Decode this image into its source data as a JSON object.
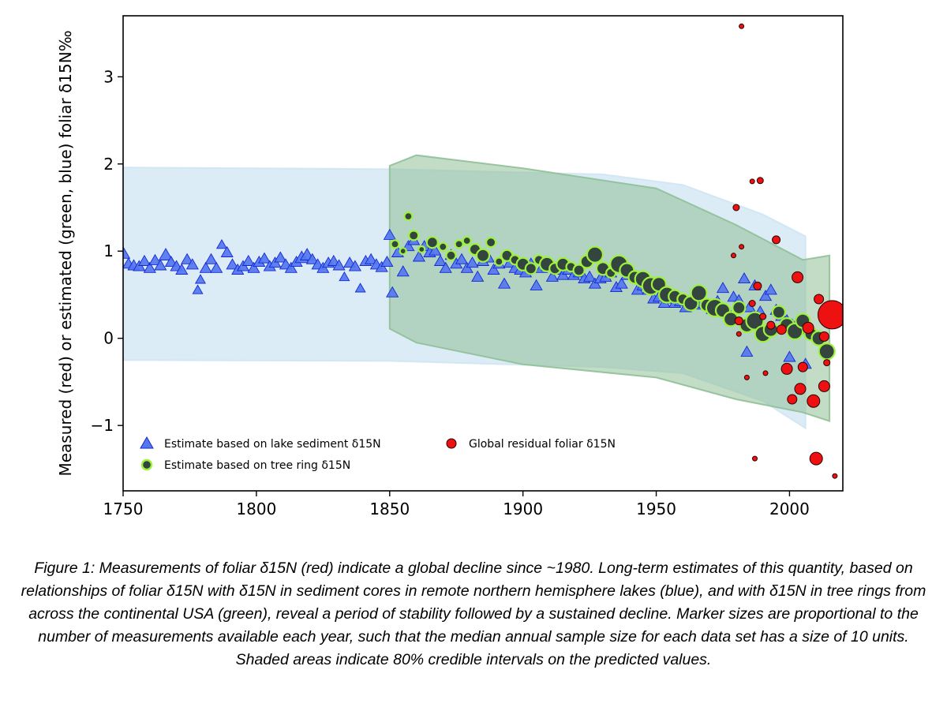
{
  "chart_data": {
    "type": "scatter",
    "ylabel": "Measured (red) or estimated (green, blue) foliar δ15N‰",
    "xlabel": "",
    "xlim": [
      1750,
      2020
    ],
    "ylim": [
      -1.75,
      3.7
    ],
    "x_ticks": [
      1750,
      1800,
      1850,
      1900,
      1950,
      2000
    ],
    "y_ticks": [
      -1,
      0,
      1,
      2,
      3
    ],
    "y_tick_labels": [
      "−1",
      "0",
      "1",
      "2",
      "3"
    ],
    "grid": false,
    "legend_position": "bottom-left",
    "bands": [
      {
        "name": "lake sediment 80% credible interval",
        "color": "#cfe6f3",
        "upper": [
          [
            1750,
            1.96
          ],
          [
            1850,
            1.94
          ],
          [
            1930,
            1.88
          ],
          [
            1960,
            1.76
          ],
          [
            1990,
            1.42
          ],
          [
            2006,
            1.17
          ]
        ],
        "lower": [
          [
            1750,
            -0.25
          ],
          [
            1850,
            -0.26
          ],
          [
            1930,
            -0.33
          ],
          [
            1960,
            -0.4
          ],
          [
            1990,
            -0.72
          ],
          [
            2006,
            -1.03
          ]
        ]
      },
      {
        "name": "tree ring 80% credible interval",
        "color": "#8fc097",
        "upper": [
          [
            1850,
            1.98
          ],
          [
            1860,
            2.1
          ],
          [
            1900,
            1.95
          ],
          [
            1950,
            1.72
          ],
          [
            1980,
            1.3
          ],
          [
            2005,
            0.9
          ],
          [
            2015,
            0.95
          ]
        ],
        "lower": [
          [
            1850,
            0.11
          ],
          [
            1860,
            -0.05
          ],
          [
            1900,
            -0.3
          ],
          [
            1950,
            -0.45
          ],
          [
            1980,
            -0.7
          ],
          [
            2005,
            -0.85
          ],
          [
            2015,
            -0.95
          ]
        ]
      }
    ],
    "series": [
      {
        "name": "Estimate based on lake sediment δ15N",
        "marker": "triangle",
        "color": "#5577ee",
        "edge": "#1428d6",
        "points": [
          [
            1750,
            0.97
          ],
          [
            1752,
            0.85
          ],
          [
            1754,
            0.83
          ],
          [
            1756,
            0.82
          ],
          [
            1758,
            0.88
          ],
          [
            1760,
            0.8
          ],
          [
            1762,
            0.89
          ],
          [
            1764,
            0.83
          ],
          [
            1766,
            0.95
          ],
          [
            1768,
            0.87
          ],
          [
            1770,
            0.82
          ],
          [
            1772,
            0.78
          ],
          [
            1774,
            0.9
          ],
          [
            1776,
            0.84
          ],
          [
            1778,
            0.55
          ],
          [
            1779,
            0.67
          ],
          [
            1781,
            0.8
          ],
          [
            1783,
            0.9
          ],
          [
            1785,
            0.8
          ],
          [
            1787,
            1.07
          ],
          [
            1789,
            0.98
          ],
          [
            1791,
            0.84
          ],
          [
            1793,
            0.78
          ],
          [
            1795,
            0.82
          ],
          [
            1797,
            0.88
          ],
          [
            1799,
            0.8
          ],
          [
            1801,
            0.87
          ],
          [
            1803,
            0.91
          ],
          [
            1805,
            0.82
          ],
          [
            1807,
            0.86
          ],
          [
            1809,
            0.92
          ],
          [
            1811,
            0.84
          ],
          [
            1813,
            0.8
          ],
          [
            1815,
            0.87
          ],
          [
            1817,
            0.92
          ],
          [
            1819,
            0.95
          ],
          [
            1821,
            0.9
          ],
          [
            1823,
            0.84
          ],
          [
            1825,
            0.8
          ],
          [
            1827,
            0.86
          ],
          [
            1829,
            0.88
          ],
          [
            1831,
            0.83
          ],
          [
            1833,
            0.7
          ],
          [
            1835,
            0.86
          ],
          [
            1837,
            0.82
          ],
          [
            1839,
            0.57
          ],
          [
            1841,
            0.88
          ],
          [
            1843,
            0.9
          ],
          [
            1845,
            0.84
          ],
          [
            1847,
            0.81
          ],
          [
            1849,
            0.87
          ],
          [
            1850,
            1.18
          ],
          [
            1851,
            0.52
          ],
          [
            1853,
            0.98
          ],
          [
            1855,
            0.76
          ],
          [
            1857,
            1.05
          ],
          [
            1859,
            1.12
          ],
          [
            1861,
            0.93
          ],
          [
            1863,
            1.05
          ],
          [
            1865,
            0.98
          ],
          [
            1867,
            1.0
          ],
          [
            1869,
            0.88
          ],
          [
            1871,
            0.8
          ],
          [
            1873,
            0.95
          ],
          [
            1875,
            0.85
          ],
          [
            1877,
            0.9
          ],
          [
            1879,
            0.8
          ],
          [
            1881,
            0.86
          ],
          [
            1883,
            0.7
          ],
          [
            1885,
            0.88
          ],
          [
            1887,
            0.92
          ],
          [
            1889,
            0.78
          ],
          [
            1891,
            0.85
          ],
          [
            1893,
            0.62
          ],
          [
            1895,
            0.86
          ],
          [
            1897,
            0.8
          ],
          [
            1899,
            0.78
          ],
          [
            1901,
            0.75
          ],
          [
            1903,
            0.85
          ],
          [
            1905,
            0.6
          ],
          [
            1907,
            0.8
          ],
          [
            1909,
            0.82
          ],
          [
            1911,
            0.7
          ],
          [
            1913,
            0.78
          ],
          [
            1915,
            0.72
          ],
          [
            1917,
            0.78
          ],
          [
            1919,
            0.72
          ],
          [
            1921,
            0.75
          ],
          [
            1923,
            0.68
          ],
          [
            1925,
            0.7
          ],
          [
            1927,
            0.62
          ],
          [
            1929,
            0.68
          ],
          [
            1931,
            0.7
          ],
          [
            1933,
            0.75
          ],
          [
            1935,
            0.58
          ],
          [
            1937,
            0.62
          ],
          [
            1939,
            0.72
          ],
          [
            1941,
            0.75
          ],
          [
            1943,
            0.55
          ],
          [
            1945,
            0.6
          ],
          [
            1947,
            0.55
          ],
          [
            1949,
            0.45
          ],
          [
            1951,
            0.47
          ],
          [
            1953,
            0.4
          ],
          [
            1955,
            0.45
          ],
          [
            1957,
            0.4
          ],
          [
            1959,
            0.42
          ],
          [
            1961,
            0.35
          ],
          [
            1963,
            0.42
          ],
          [
            1965,
            0.38
          ],
          [
            1967,
            0.4
          ],
          [
            1969,
            0.38
          ],
          [
            1971,
            0.33
          ],
          [
            1973,
            0.42
          ],
          [
            1975,
            0.57
          ],
          [
            1977,
            0.3
          ],
          [
            1979,
            0.47
          ],
          [
            1981,
            0.43
          ],
          [
            1983,
            0.68
          ],
          [
            1985,
            0.35
          ],
          [
            1987,
            0.6
          ],
          [
            1989,
            0.3
          ],
          [
            1991,
            0.48
          ],
          [
            1993,
            0.55
          ],
          [
            1995,
            0.32
          ],
          [
            1997,
            0.25
          ],
          [
            1999,
            0.2
          ],
          [
            2001,
            0.15
          ],
          [
            2003,
            0.18
          ],
          [
            2005,
            0.1
          ],
          [
            1984,
            -0.16
          ],
          [
            2000,
            -0.22
          ],
          [
            2006,
            -0.3
          ]
        ],
        "sizes": [
          8,
          7,
          7,
          7,
          7,
          7,
          7,
          7,
          8,
          7,
          7,
          7,
          7,
          7,
          6,
          6,
          7,
          7,
          7,
          6,
          7,
          7,
          7,
          7,
          7,
          7,
          7,
          7,
          7,
          7,
          7,
          7,
          7,
          7,
          8,
          8,
          7,
          7,
          7,
          7,
          7,
          7,
          6,
          7,
          7,
          6,
          7,
          7,
          7,
          7,
          7,
          7,
          7,
          7,
          7,
          7,
          7,
          7,
          7,
          7,
          7,
          7,
          7,
          7,
          7,
          7,
          7,
          7,
          7,
          7,
          7,
          7,
          7,
          7,
          7,
          7,
          7,
          7,
          7,
          7,
          7,
          7,
          7,
          7,
          7,
          7,
          7,
          7,
          7,
          7,
          7,
          7,
          7,
          7,
          7,
          7,
          7,
          7,
          7,
          7,
          7,
          7,
          7,
          7,
          7,
          7,
          7,
          7,
          7,
          7,
          7,
          7,
          7,
          7,
          7,
          7,
          7,
          7,
          7,
          7,
          7,
          7,
          7,
          7,
          7,
          7,
          7,
          7,
          7,
          7,
          7,
          7,
          7,
          7,
          7,
          7,
          7,
          7
        ]
      },
      {
        "name": "Estimate based on tree ring δ15N",
        "marker": "circle",
        "color": "#33453e",
        "edge": "#9ef23c",
        "points": [
          [
            1852,
            1.08
          ],
          [
            1855,
            1.0
          ],
          [
            1857,
            1.4
          ],
          [
            1859,
            1.18
          ],
          [
            1862,
            1.02
          ],
          [
            1866,
            1.1
          ],
          [
            1870,
            1.05
          ],
          [
            1873,
            0.95
          ],
          [
            1876,
            1.08
          ],
          [
            1879,
            1.12
          ],
          [
            1882,
            1.02
          ],
          [
            1885,
            0.95
          ],
          [
            1888,
            1.1
          ],
          [
            1891,
            0.88
          ],
          [
            1894,
            0.95
          ],
          [
            1897,
            0.9
          ],
          [
            1900,
            0.85
          ],
          [
            1903,
            0.8
          ],
          [
            1906,
            0.9
          ],
          [
            1909,
            0.85
          ],
          [
            1912,
            0.8
          ],
          [
            1915,
            0.85
          ],
          [
            1918,
            0.82
          ],
          [
            1921,
            0.78
          ],
          [
            1924,
            0.88
          ],
          [
            1927,
            0.96
          ],
          [
            1930,
            0.8
          ],
          [
            1933,
            0.75
          ],
          [
            1936,
            0.85
          ],
          [
            1939,
            0.78
          ],
          [
            1942,
            0.7
          ],
          [
            1945,
            0.68
          ],
          [
            1948,
            0.6
          ],
          [
            1951,
            0.62
          ],
          [
            1954,
            0.5
          ],
          [
            1957,
            0.48
          ],
          [
            1960,
            0.45
          ],
          [
            1963,
            0.4
          ],
          [
            1966,
            0.52
          ],
          [
            1969,
            0.38
          ],
          [
            1972,
            0.35
          ],
          [
            1975,
            0.32
          ],
          [
            1978,
            0.22
          ],
          [
            1981,
            0.35
          ],
          [
            1984,
            0.15
          ],
          [
            1987,
            0.2
          ],
          [
            1990,
            0.05
          ],
          [
            1993,
            0.1
          ],
          [
            1996,
            0.3
          ],
          [
            1999,
            0.15
          ],
          [
            2002,
            0.08
          ],
          [
            2005,
            0.2
          ],
          [
            2008,
            0.05
          ],
          [
            2011,
            0.0
          ],
          [
            2014,
            -0.15
          ]
        ],
        "sizes": [
          5,
          4,
          5,
          6,
          4,
          7,
          5,
          6,
          5,
          5,
          7,
          8,
          6,
          5,
          7,
          6,
          8,
          7,
          6,
          9,
          7,
          8,
          6,
          7,
          8,
          10,
          8,
          6,
          11,
          9,
          8,
          10,
          11,
          9,
          10,
          8,
          7,
          9,
          10,
          8,
          11,
          9,
          9,
          8,
          9,
          11,
          10,
          9,
          8,
          9,
          10,
          9,
          8,
          9,
          10
        ]
      },
      {
        "name": "Global residual foliar δ15N",
        "marker": "circle",
        "color": "#ee1111",
        "edge": "#2b0000",
        "points": [
          [
            1982,
            3.58
          ],
          [
            1980,
            1.5
          ],
          [
            1982,
            1.05
          ],
          [
            1986,
            1.8
          ],
          [
            1989,
            1.81
          ],
          [
            1995,
            1.13
          ],
          [
            2003,
            0.7
          ],
          [
            1979,
            0.95
          ],
          [
            1981,
            0.2
          ],
          [
            1984,
            -0.45
          ],
          [
            1986,
            0.4
          ],
          [
            1988,
            0.6
          ],
          [
            1990,
            0.25
          ],
          [
            1991,
            -0.4
          ],
          [
            1993,
            0.15
          ],
          [
            1997,
            0.1
          ],
          [
            1999,
            -0.35
          ],
          [
            2001,
            -0.7
          ],
          [
            2004,
            -0.58
          ],
          [
            2005,
            -0.33
          ],
          [
            2007,
            0.12
          ],
          [
            2009,
            -0.72
          ],
          [
            2010,
            -1.38
          ],
          [
            2011,
            0.45
          ],
          [
            2013,
            0.02
          ],
          [
            2013,
            -0.55
          ],
          [
            2014,
            -0.28
          ],
          [
            2016,
            0.27
          ],
          [
            1987,
            -1.38
          ],
          [
            2017,
            -1.58
          ],
          [
            1981,
            0.05
          ]
        ],
        "sizes": [
          3,
          4,
          3,
          3,
          4,
          5,
          7,
          3,
          5,
          3,
          4,
          5,
          4,
          3,
          5,
          6,
          7,
          6,
          7,
          6,
          7,
          8,
          8,
          6,
          6,
          7,
          4,
          18,
          3,
          3,
          3
        ]
      }
    ]
  },
  "caption": {
    "text": "Figure 1: Measurements of foliar δ15N (red) indicate a global decline since ~1980.  Long-term  estimates of this quantity, based on relationships of foliar δ15N with δ15N in sediment cores in remote northern hemisphere lakes (blue), and with δ15N in tree rings from across the continental USA (green), reveal a period of stability followed by a sustained decline. Marker sizes are proportional to the number of measurements available each year, such that the median annual sample size for each data set has a size of 10 units. Shaded areas indicate 80% credible intervals on the predicted values."
  }
}
